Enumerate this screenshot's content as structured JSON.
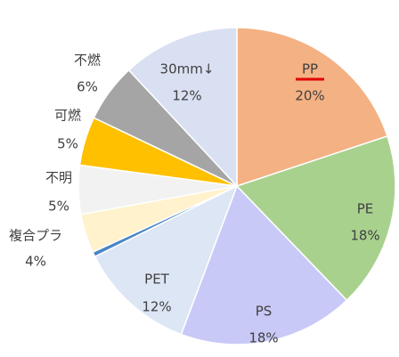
{
  "chart_data": {
    "type": "pie",
    "categories": [
      "PP",
      "PE",
      "PS",
      "PET",
      null,
      "複合プラ",
      "不明",
      "可燃",
      "不燃",
      "30mm↓"
    ],
    "values": [
      20,
      18,
      18,
      12,
      0.5,
      4,
      5,
      5,
      6,
      12
    ],
    "value_labels": [
      "20%",
      "18%",
      "18%",
      "12%",
      null,
      "4%",
      "5%",
      "5%",
      "6%",
      "12%"
    ],
    "colors": [
      "#f4b183",
      "#a9d18e",
      "#c9c9f7",
      "#dde6f5",
      "#4a86c5",
      "#fff2cc",
      "#f2f2f2",
      "#ffc000",
      "#a5a5a5",
      "#d9e0f2"
    ]
  }
}
